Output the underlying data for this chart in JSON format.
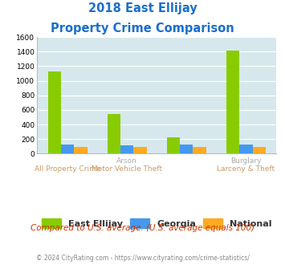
{
  "title_line1": "2018 East Ellijay",
  "title_line2": "Property Crime Comparison",
  "title_color": "#1a6fcc",
  "east_ellijay": [
    1130,
    540,
    230,
    1420
  ],
  "georgia": [
    130,
    110,
    125,
    125
  ],
  "national": [
    95,
    95,
    95,
    90
  ],
  "color_ellijay": "#88cc00",
  "color_georgia": "#4499ee",
  "color_national": "#ffaa22",
  "ylim": [
    0,
    1600
  ],
  "yticks": [
    0,
    200,
    400,
    600,
    800,
    1000,
    1200,
    1400,
    1600
  ],
  "background_color": "#d6e8ec",
  "grid_color": "#ffffff",
  "legend_labels": [
    "East Ellijay",
    "Georgia",
    "National"
  ],
  "footer_text": "Compared to U.S. average. (U.S. average equals 100)",
  "footer_color": "#cc3300",
  "copyright_text": "© 2024 CityRating.com - https://www.cityrating.com/crime-statistics/",
  "copyright_color": "#888888",
  "xlabel_top_color": "#aaaaaa",
  "xlabel_bot_color": "#cc9966",
  "top_labels": [
    "",
    "Arson",
    "",
    "Burglary"
  ],
  "bot_labels": [
    "All Property Crime",
    "Motor Vehicle Theft",
    "",
    "Larceny & Theft"
  ]
}
